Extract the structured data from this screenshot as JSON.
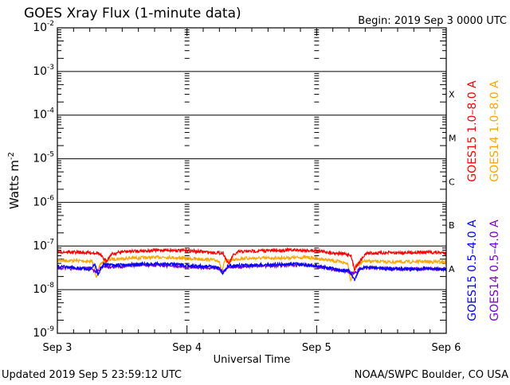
{
  "chart_data": {
    "type": "line",
    "title": "GOES Xray Flux (1-minute data)",
    "begin_label": "Begin:  2019 Sep 3 0000 UTC",
    "ylabel": "Watts m",
    "ylabel_exp": "-2",
    "xlabel": "Universal Time",
    "y_scale": "log",
    "ylim": [
      1e-09,
      0.01
    ],
    "y_ticks": [
      {
        "base": "10",
        "exp": "-2",
        "value": 0.01
      },
      {
        "base": "10",
        "exp": "-3",
        "value": 0.001
      },
      {
        "base": "10",
        "exp": "-4",
        "value": 0.0001
      },
      {
        "base": "10",
        "exp": "-5",
        "value": 1e-05
      },
      {
        "base": "10",
        "exp": "-6",
        "value": 1e-06
      },
      {
        "base": "10",
        "exp": "-7",
        "value": 1e-07
      },
      {
        "base": "10",
        "exp": "-8",
        "value": 1e-08
      },
      {
        "base": "10",
        "exp": "-9",
        "value": 1e-09
      }
    ],
    "x_unit": "hours since 2019 Sep 3 0000 UTC",
    "xlim": [
      0,
      72
    ],
    "x_ticks": [
      {
        "label": "Sep 3",
        "hour": 0
      },
      {
        "label": "Sep 4",
        "hour": 24
      },
      {
        "label": "Sep 5",
        "hour": 48
      },
      {
        "label": "Sep 6",
        "hour": 72
      }
    ],
    "grid": "horizontal lines at each decade",
    "flare_classes": [
      {
        "label": "X",
        "value": 0.0003
      },
      {
        "label": "M",
        "value": 3e-05
      },
      {
        "label": "C",
        "value": 3e-06
      },
      {
        "label": "B",
        "value": 3e-07
      },
      {
        "label": "A",
        "value": 3e-08
      }
    ],
    "legend_placement": "right, rotated",
    "series": [
      {
        "name": "GOES15 1.0–8.0 A",
        "color": "#ff0000",
        "points": [
          [
            0,
            7.4e-08
          ],
          [
            3,
            7.2e-08
          ],
          [
            6,
            7e-08
          ],
          [
            7.5,
            7e-08
          ],
          [
            9,
            4.5e-08
          ],
          [
            10,
            6.5e-08
          ],
          [
            12,
            7.4e-08
          ],
          [
            16,
            7.8e-08
          ],
          [
            20,
            8.1e-08
          ],
          [
            24,
            7.8e-08
          ],
          [
            28,
            7.2e-08
          ],
          [
            30.7,
            6.9e-08
          ],
          [
            31.7,
            3.8e-08
          ],
          [
            32.5,
            6e-08
          ],
          [
            33.6,
            7.4e-08
          ],
          [
            38,
            7.8e-08
          ],
          [
            44,
            8.1e-08
          ],
          [
            48,
            7.8e-08
          ],
          [
            51,
            7e-08
          ],
          [
            54.3,
            6.3e-08
          ],
          [
            55,
            2.95e-08
          ],
          [
            56,
            4.5e-08
          ],
          [
            57.2,
            6.8e-08
          ],
          [
            62,
            7e-08
          ],
          [
            68,
            7.2e-08
          ],
          [
            72,
            7e-08
          ]
        ]
      },
      {
        "name": "GOES14 1.0–8.0 A",
        "color": "#ffa500",
        "points": [
          [
            0,
            4.7e-08
          ],
          [
            4,
            4.6e-08
          ],
          [
            6.5,
            4.4e-08
          ],
          [
            7.2,
            2e-08
          ],
          [
            8,
            4e-08
          ],
          [
            10,
            5e-08
          ],
          [
            14,
            5.3e-08
          ],
          [
            20,
            5.6e-08
          ],
          [
            24,
            5.2e-08
          ],
          [
            28,
            4.9e-08
          ],
          [
            30,
            4.6e-08
          ],
          [
            30.4,
            2.4e-08
          ],
          [
            31,
            4.5e-08
          ],
          [
            34,
            5.2e-08
          ],
          [
            40,
            5.3e-08
          ],
          [
            46,
            5.5e-08
          ],
          [
            48,
            5.2e-08
          ],
          [
            52,
            4.4e-08
          ],
          [
            53.8,
            4e-08
          ],
          [
            54.3,
            1.6e-08
          ],
          [
            55.2,
            3.5e-08
          ],
          [
            57,
            4.5e-08
          ],
          [
            62,
            4.3e-08
          ],
          [
            68,
            4.4e-08
          ],
          [
            72,
            4.3e-08
          ]
        ]
      },
      {
        "name": "GOES15 0.5–4.0 A",
        "color": "#0000ff",
        "points": [
          [
            0,
            3.4e-08
          ],
          [
            3,
            3.2e-08
          ],
          [
            6,
            2.9e-08
          ],
          [
            7,
            3.8e-08
          ],
          [
            7.5,
            2.2e-08
          ],
          [
            8.5,
            3.8e-08
          ],
          [
            10,
            3.6e-08
          ],
          [
            14,
            3.8e-08
          ],
          [
            20,
            3.9e-08
          ],
          [
            24,
            3.6e-08
          ],
          [
            28,
            3.4e-08
          ],
          [
            30,
            3.2e-08
          ],
          [
            30.5,
            2.3e-08
          ],
          [
            31.5,
            3.4e-08
          ],
          [
            33,
            3.6e-08
          ],
          [
            38,
            3.7e-08
          ],
          [
            44,
            3.9e-08
          ],
          [
            48,
            3.5e-08
          ],
          [
            52,
            2.9e-08
          ],
          [
            54,
            2.7e-08
          ],
          [
            55,
            1.65e-08
          ],
          [
            56,
            3e-08
          ],
          [
            57.5,
            3.3e-08
          ],
          [
            62,
            3e-08
          ],
          [
            68,
            3e-08
          ],
          [
            72,
            2.95e-08
          ]
        ]
      },
      {
        "name": "GOES14 0.5–4.0 A",
        "color": "#7b00d4",
        "points": [
          [
            0,
            3.2e-08
          ],
          [
            3,
            3e-08
          ],
          [
            6,
            3.1e-08
          ],
          [
            7.3,
            2.5e-08
          ],
          [
            8.5,
            3.5e-08
          ],
          [
            10,
            3.3e-08
          ],
          [
            14,
            3.6e-08
          ],
          [
            20,
            3.6e-08
          ],
          [
            24,
            3.3e-08
          ],
          [
            28,
            3.2e-08
          ],
          [
            30,
            3.1e-08
          ],
          [
            30.6,
            2.5e-08
          ],
          [
            31.5,
            3.3e-08
          ],
          [
            34,
            3.4e-08
          ],
          [
            40,
            3.5e-08
          ],
          [
            46,
            3.7e-08
          ],
          [
            48,
            3.4e-08
          ],
          [
            52,
            2.8e-08
          ],
          [
            54,
            2.5e-08
          ],
          [
            55,
            2.4e-08
          ],
          [
            56,
            3e-08
          ],
          [
            58,
            3.2e-08
          ],
          [
            62,
            2.95e-08
          ],
          [
            68,
            3e-08
          ],
          [
            72,
            2.95e-08
          ]
        ]
      }
    ]
  },
  "footer": {
    "updated": "Updated 2019 Sep  5 23:59:12 UTC",
    "credit": "NOAA/SWPC Boulder, CO USA"
  }
}
